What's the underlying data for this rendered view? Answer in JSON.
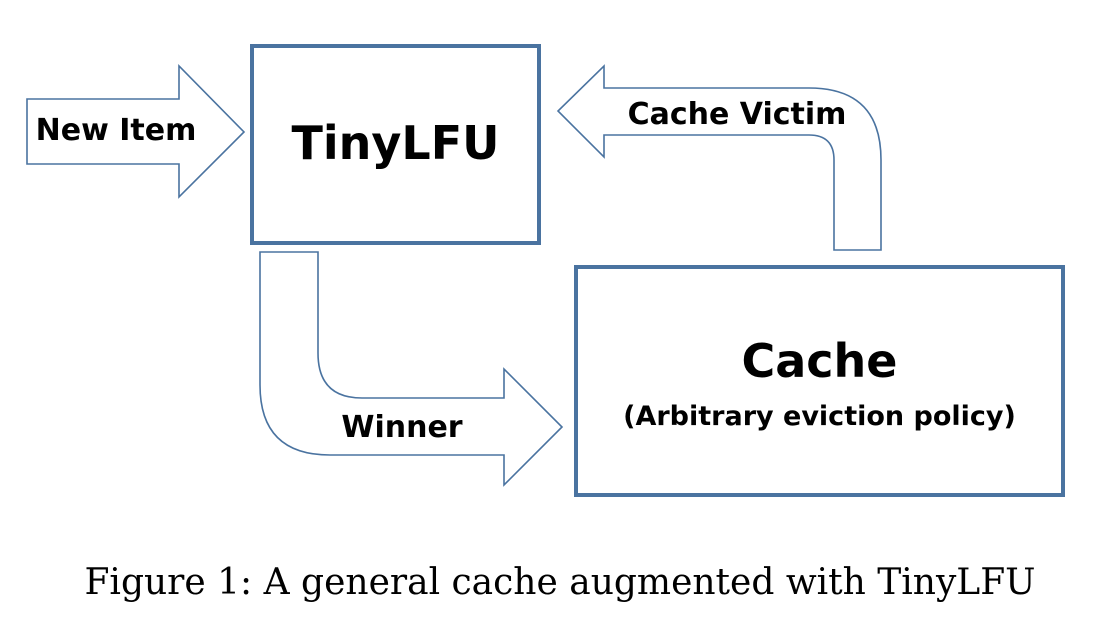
{
  "nodes": {
    "tinylfu": {
      "label": "TinyLFU"
    },
    "cache": {
      "label": "Cache",
      "sublabel": "(Arbitrary eviction policy)"
    }
  },
  "edges": {
    "new_item": {
      "label": "New Item"
    },
    "cache_victim": {
      "label": "Cache Victim"
    },
    "winner": {
      "label": "Winner"
    }
  },
  "caption": "Figure 1: A general cache augmented with TinyLFU",
  "colors": {
    "stroke": "#4a73a0",
    "fill": "#ffffff",
    "text": "#000000"
  }
}
